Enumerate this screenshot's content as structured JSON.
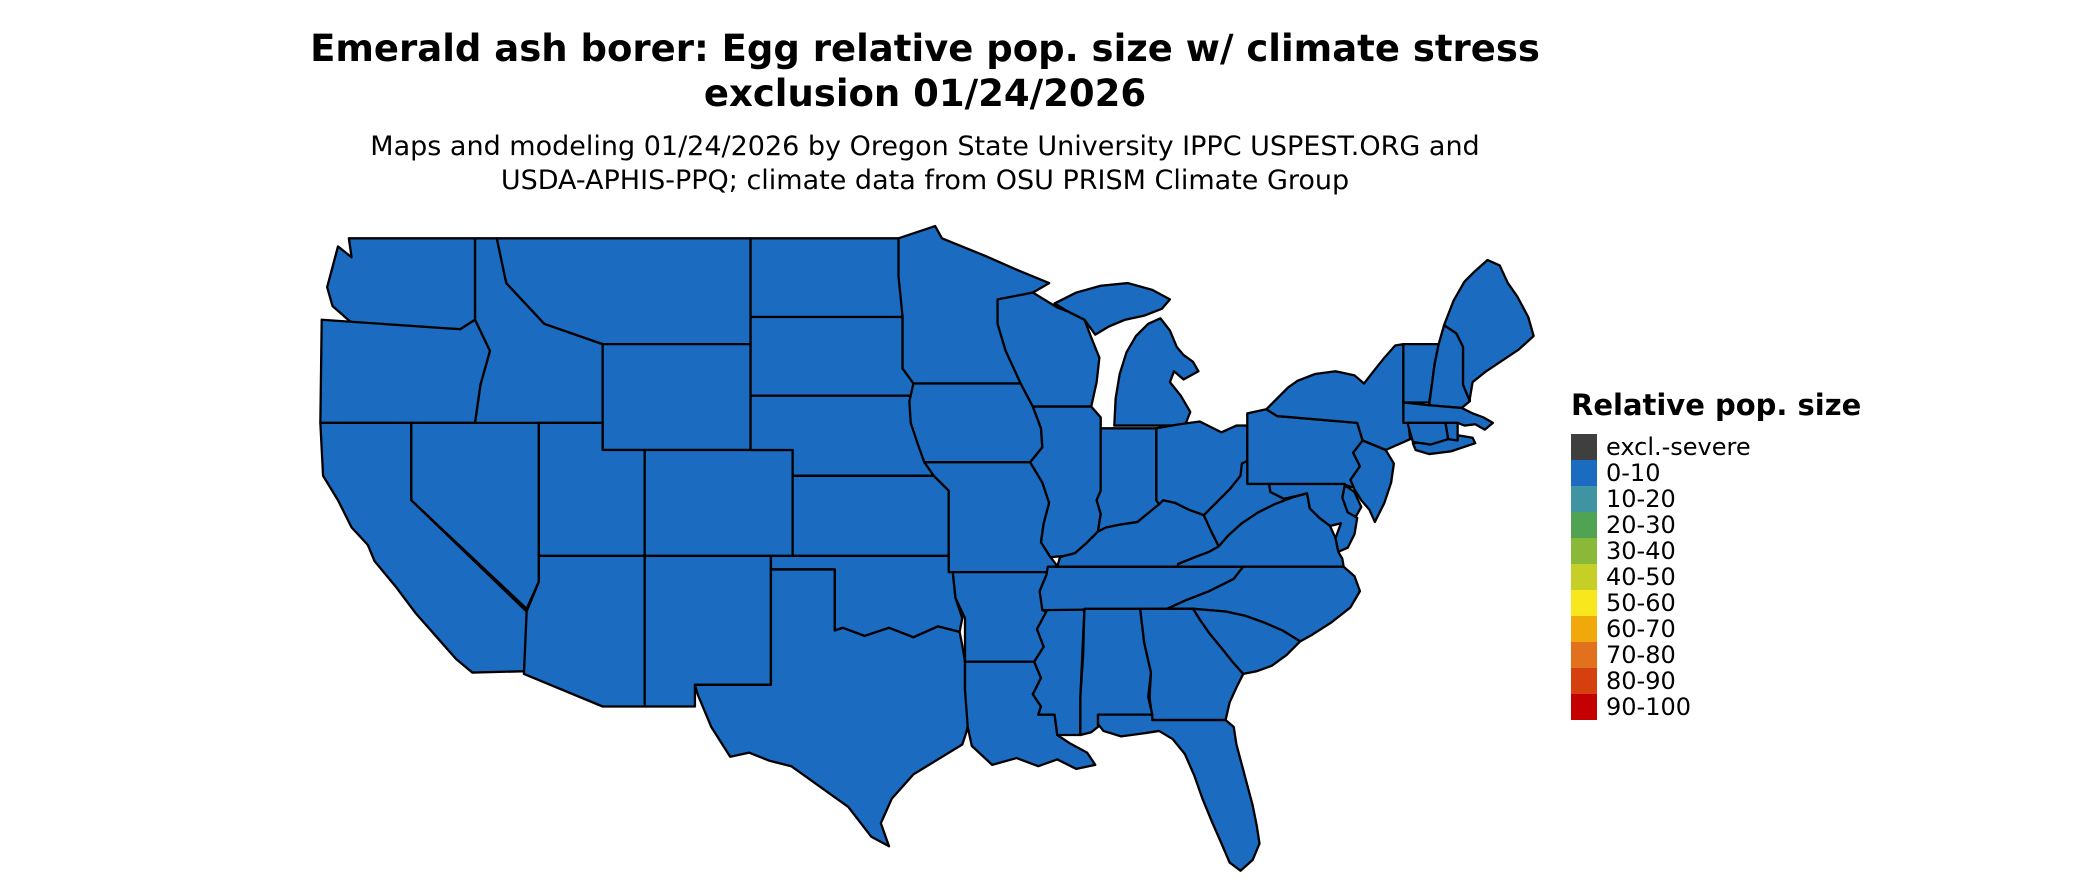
{
  "title": {
    "line1": "Emerald ash borer: Egg relative pop. size w/ climate stress",
    "line2": "exclusion 01/24/2026"
  },
  "subtitle": {
    "line1": "Maps and modeling 01/24/2026 by Oregon State University IPPC USPEST.ORG and",
    "line2": "USDA-APHIS-PPQ; climate data from OSU PRISM Climate Group"
  },
  "legend": {
    "title": "Relative pop. size",
    "entries": [
      {
        "label": "excl.-severe",
        "color": "#3f3f3f"
      },
      {
        "label": "0-10",
        "color": "#1b6cc0"
      },
      {
        "label": "10-20",
        "color": "#4093a3"
      },
      {
        "label": "20-30",
        "color": "#4fa352"
      },
      {
        "label": "30-40",
        "color": "#8ab93a"
      },
      {
        "label": "40-50",
        "color": "#c6cf27"
      },
      {
        "label": "50-60",
        "color": "#f7e71c"
      },
      {
        "label": "60-70",
        "color": "#f0a80a"
      },
      {
        "label": "70-80",
        "color": "#e2711d"
      },
      {
        "label": "80-90",
        "color": "#d6400f"
      },
      {
        "label": "90-100",
        "color": "#c40000"
      }
    ]
  },
  "map": {
    "region": "Contiguous United States",
    "uniform_value": "0-10",
    "fill_color": "#1b6cc0",
    "border_color": "#000000",
    "state_ids": [
      "WA",
      "OR",
      "CA",
      "NV",
      "ID",
      "MT",
      "WY",
      "UT",
      "CO",
      "AZ",
      "NM",
      "ND",
      "SD",
      "NE",
      "KS",
      "OK",
      "TX",
      "MN",
      "IA",
      "MO",
      "AR",
      "LA",
      "MS",
      "TN",
      "KY",
      "WI",
      "IL",
      "IN",
      "MI",
      "OH",
      "PA",
      "NY",
      "VT",
      "NH",
      "ME",
      "MA",
      "RI",
      "CT",
      "NJ",
      "DE",
      "MD",
      "VA",
      "WV",
      "NC",
      "SC",
      "GA",
      "AL",
      "FL"
    ]
  }
}
